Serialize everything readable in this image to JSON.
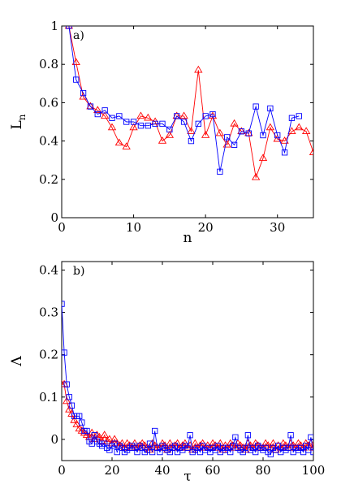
{
  "chart_data": [
    {
      "type": "line",
      "panel_label": "a)",
      "xlabel": "n",
      "ylabel": "L",
      "ylabel_sub": "n",
      "xlim": [
        0,
        35
      ],
      "ylim": [
        0,
        1
      ],
      "xticks": [
        0,
        10,
        20,
        30
      ],
      "yticks": [
        0,
        0.2,
        0.4,
        0.6,
        0.8,
        1
      ],
      "xtick_labels": [
        "0",
        "10",
        "20",
        "30"
      ],
      "ytick_labels": [
        "0",
        "0.2",
        "0.4",
        "0.6",
        "0.8",
        "1"
      ],
      "grid": false,
      "series": [
        {
          "color": "#ff0000",
          "marker": "triangle",
          "x": [
            1,
            2,
            3,
            4,
            5,
            6,
            7,
            8,
            9,
            10,
            11,
            12,
            13,
            14,
            15,
            16,
            17,
            18,
            19,
            20,
            21,
            22,
            23,
            24,
            25,
            26,
            27,
            28,
            29,
            30,
            31,
            32,
            33,
            34,
            35
          ],
          "y": [
            1.0,
            0.81,
            0.63,
            0.58,
            0.56,
            0.53,
            0.47,
            0.39,
            0.37,
            0.47,
            0.53,
            0.52,
            0.5,
            0.4,
            0.43,
            0.53,
            0.53,
            0.45,
            0.77,
            0.43,
            0.53,
            0.44,
            0.38,
            0.49,
            0.45,
            0.44,
            0.21,
            0.31,
            0.47,
            0.41,
            0.4,
            0.45,
            0.47,
            0.45,
            0.34
          ]
        },
        {
          "color": "#0000ff",
          "marker": "square",
          "x": [
            1,
            2,
            3,
            4,
            5,
            6,
            7,
            8,
            9,
            10,
            11,
            12,
            13,
            14,
            15,
            16,
            17,
            18,
            19,
            20,
            21,
            22,
            23,
            24,
            25,
            26,
            27,
            28,
            29,
            30,
            31,
            32,
            33
          ],
          "y": [
            1.0,
            0.72,
            0.65,
            0.58,
            0.54,
            0.56,
            0.52,
            0.53,
            0.5,
            0.5,
            0.48,
            0.48,
            0.49,
            0.49,
            0.46,
            0.53,
            0.5,
            0.4,
            0.49,
            0.53,
            0.54,
            0.24,
            0.42,
            0.38,
            0.45,
            0.44,
            0.58,
            0.43,
            0.57,
            0.43,
            0.34,
            0.52,
            0.53
          ]
        }
      ]
    },
    {
      "type": "line",
      "panel_label": "b)",
      "xlabel": "τ",
      "ylabel": "Λ",
      "xlim": [
        0,
        100
      ],
      "ylim": [
        -0.05,
        0.42
      ],
      "xticks": [
        0,
        20,
        40,
        60,
        80,
        100
      ],
      "yticks": [
        0,
        0.1,
        0.2,
        0.3,
        0.4
      ],
      "xtick_labels": [
        "0",
        "20",
        "40",
        "60",
        "80",
        "100"
      ],
      "ytick_labels": [
        "0",
        "0.1",
        "0.2",
        "0.3",
        "0.4"
      ],
      "grid": false,
      "series": [
        {
          "color": "#ff0000",
          "marker": "triangle",
          "x": [
            0,
            1,
            2,
            3,
            4,
            5,
            6,
            7,
            8,
            9,
            10,
            11,
            12,
            13,
            14,
            15,
            16,
            17,
            18,
            19,
            20,
            21,
            22,
            23,
            24,
            25,
            26,
            27,
            28,
            29,
            30,
            31,
            32,
            33,
            34,
            35,
            36,
            37,
            38,
            39,
            40,
            41,
            42,
            43,
            44,
            45,
            46,
            47,
            48,
            49,
            50,
            51,
            52,
            53,
            54,
            55,
            56,
            57,
            58,
            59,
            60,
            61,
            62,
            63,
            64,
            65,
            66,
            67,
            68,
            69,
            70,
            71,
            72,
            73,
            74,
            75,
            76,
            77,
            78,
            79,
            80,
            81,
            82,
            83,
            84,
            85,
            86,
            87,
            88,
            89,
            90,
            91,
            92,
            93,
            94,
            95,
            96,
            97,
            98,
            99,
            100
          ],
          "y": [
            0.13,
            0.13,
            0.09,
            0.07,
            0.06,
            0.045,
            0.035,
            0.025,
            0.02,
            0.015,
            0.01,
            0.005,
            0.015,
            0.0,
            0.01,
            0.005,
            -0.005,
            0.01,
            -0.005,
            0.0,
            -0.01,
            0.0,
            -0.01,
            -0.015,
            -0.01,
            -0.02,
            -0.01,
            -0.015,
            -0.02,
            -0.01,
            -0.02,
            -0.015,
            -0.01,
            -0.015,
            -0.02,
            -0.025,
            -0.01,
            -0.015,
            -0.02,
            -0.02,
            -0.01,
            -0.015,
            -0.025,
            -0.01,
            -0.02,
            -0.015,
            -0.01,
            -0.02,
            -0.015,
            -0.01,
            -0.02,
            -0.015,
            -0.025,
            -0.01,
            -0.02,
            -0.015,
            -0.01,
            -0.02,
            -0.015,
            -0.02,
            -0.01,
            -0.015,
            -0.02,
            -0.01,
            -0.025,
            -0.015,
            -0.02,
            -0.01,
            -0.015,
            -0.02,
            -0.01,
            -0.015,
            -0.02,
            -0.025,
            -0.01,
            -0.015,
            -0.02,
            -0.01,
            -0.015,
            -0.02,
            -0.02,
            -0.01,
            -0.015,
            -0.02,
            -0.01,
            -0.025,
            -0.015,
            -0.02,
            -0.01,
            -0.015,
            -0.02,
            -0.01,
            -0.015,
            -0.02,
            -0.01,
            -0.015,
            -0.02,
            -0.01,
            -0.015,
            -0.01,
            -0.02
          ]
        },
        {
          "color": "#0000ff",
          "marker": "square",
          "x": [
            0,
            1,
            2,
            3,
            4,
            5,
            6,
            7,
            8,
            9,
            10,
            11,
            12,
            13,
            14,
            15,
            16,
            17,
            18,
            19,
            20,
            21,
            22,
            23,
            24,
            25,
            26,
            27,
            28,
            29,
            30,
            31,
            32,
            33,
            34,
            35,
            36,
            37,
            38,
            39,
            40,
            41,
            42,
            43,
            44,
            45,
            46,
            47,
            48,
            49,
            50,
            51,
            52,
            53,
            54,
            55,
            56,
            57,
            58,
            59,
            60,
            61,
            62,
            63,
            64,
            65,
            66,
            67,
            68,
            69,
            70,
            71,
            72,
            73,
            74,
            75,
            76,
            77,
            78,
            79,
            80,
            81,
            82,
            83,
            84,
            85,
            86,
            87,
            88,
            89,
            90,
            91,
            92,
            93,
            94,
            95,
            96,
            97,
            98,
            99,
            100
          ],
          "y": [
            0.32,
            0.205,
            0.13,
            0.1,
            0.08,
            0.055,
            0.055,
            0.055,
            0.04,
            0.02,
            0.02,
            -0.005,
            -0.01,
            0.01,
            -0.005,
            -0.01,
            -0.015,
            -0.01,
            -0.02,
            -0.025,
            -0.015,
            -0.01,
            -0.03,
            -0.015,
            -0.02,
            -0.03,
            -0.025,
            -0.02,
            -0.015,
            -0.02,
            -0.03,
            -0.015,
            -0.02,
            -0.03,
            -0.025,
            -0.01,
            -0.03,
            0.02,
            -0.02,
            -0.03,
            -0.015,
            -0.02,
            -0.025,
            -0.03,
            -0.02,
            -0.015,
            -0.03,
            -0.02,
            -0.025,
            -0.015,
            -0.02,
            0.01,
            -0.03,
            -0.025,
            -0.02,
            -0.03,
            -0.015,
            -0.025,
            -0.02,
            -0.03,
            -0.02,
            -0.025,
            -0.015,
            -0.03,
            -0.02,
            -0.025,
            -0.02,
            -0.03,
            -0.015,
            0.005,
            -0.02,
            -0.025,
            -0.03,
            -0.02,
            0.01,
            -0.025,
            -0.02,
            -0.03,
            -0.015,
            -0.02,
            -0.025,
            -0.02,
            -0.03,
            -0.035,
            -0.02,
            -0.025,
            -0.015,
            -0.03,
            -0.02,
            -0.025,
            -0.02,
            0.01,
            -0.03,
            -0.02,
            -0.025,
            -0.02,
            -0.03,
            -0.015,
            -0.025,
            0.005,
            -0.03
          ]
        }
      ]
    }
  ]
}
